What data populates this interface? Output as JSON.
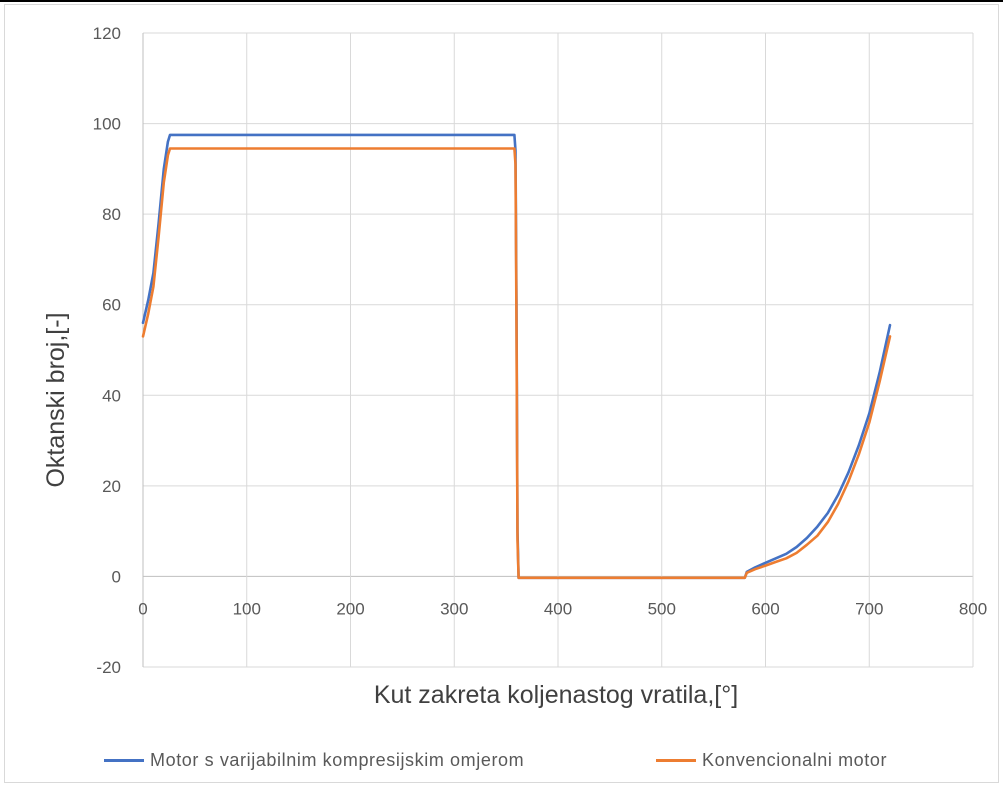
{
  "chart_data": {
    "type": "line",
    "title": "",
    "xlabel": "Kut zakreta koljenastog vratila,[°]",
    "ylabel": "Oktanski broj,[-]",
    "xlim": [
      0,
      800
    ],
    "ylim": [
      -20,
      120
    ],
    "xticks": [
      "0",
      "100",
      "200",
      "300",
      "400",
      "500",
      "600",
      "700",
      "800"
    ],
    "yticks": [
      "-20",
      "0",
      "20",
      "40",
      "60",
      "80",
      "100",
      "120"
    ],
    "grid": true,
    "legend_position": "bottom",
    "series": [
      {
        "name": "Motor s varijabilnim kompresijskim omjerom",
        "color": "#4472C4",
        "x": [
          0,
          5,
          10,
          15,
          20,
          24,
          26,
          50,
          100,
          200,
          300,
          358,
          359,
          360,
          361,
          362,
          400,
          500,
          570,
          580,
          582,
          590,
          600,
          610,
          620,
          630,
          640,
          650,
          660,
          670,
          680,
          690,
          700,
          710,
          720
        ],
        "y": [
          56,
          61,
          67,
          78,
          90,
          96,
          97.5,
          97.5,
          97.5,
          97.5,
          97.5,
          97.5,
          94,
          60,
          10,
          -0.3,
          -0.3,
          -0.3,
          -0.3,
          -0.3,
          1,
          2,
          3,
          4,
          5,
          6.5,
          8.5,
          11,
          14,
          18,
          23,
          29,
          36,
          45,
          55.5
        ]
      },
      {
        "name": "Konvencionalni motor",
        "color": "#ED7D31",
        "x": [
          0,
          5,
          10,
          15,
          20,
          24,
          26,
          50,
          100,
          200,
          300,
          358,
          359,
          360,
          361,
          362,
          400,
          500,
          570,
          580,
          582,
          590,
          600,
          610,
          620,
          630,
          640,
          650,
          660,
          670,
          680,
          690,
          700,
          710,
          720
        ],
        "y": [
          53,
          58,
          64,
          75,
          87,
          93,
          94.5,
          94.5,
          94.5,
          94.5,
          94.5,
          94.5,
          91,
          55,
          8,
          -0.3,
          -0.3,
          -0.3,
          -0.3,
          -0.3,
          0.8,
          1.6,
          2.4,
          3.2,
          4,
          5.2,
          7,
          9,
          12,
          16,
          21,
          27,
          34,
          43,
          53
        ]
      }
    ]
  }
}
